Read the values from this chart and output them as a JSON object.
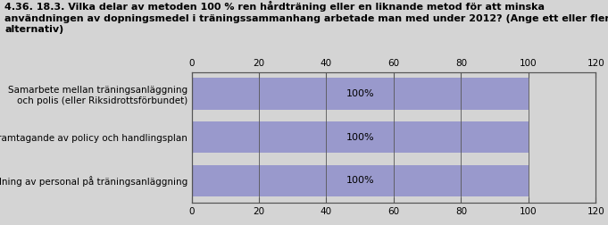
{
  "title": "4.36. 18.3. Vilka delar av metoden 100 % ren hårdträning eller en liknande metod för att minska\nanvändningen av dopningsmedel i träningssammanhang arbetade man med under 2012? (Ange ett eller flera\nalternativ)",
  "categories": [
    "Samarbete mellan träningsanläggning\noch polis (eller Riksidrottsförbundet)",
    "Framtagande av policy och handlingsplan",
    "Utbildning av personal på träningsanläggning"
  ],
  "values": [
    100,
    100,
    100
  ],
  "bar_color": "#9999cc",
  "bar_label_color": "#000000",
  "background_color": "#d4d4d4",
  "plot_bg_color": "#d4d4d4",
  "xlim": [
    0,
    120
  ],
  "xticks": [
    0,
    20,
    40,
    60,
    80,
    100,
    120
  ],
  "title_fontsize": 8.0,
  "label_fontsize": 7.5,
  "tick_fontsize": 7.5,
  "bar_label_fontsize": 8.0
}
